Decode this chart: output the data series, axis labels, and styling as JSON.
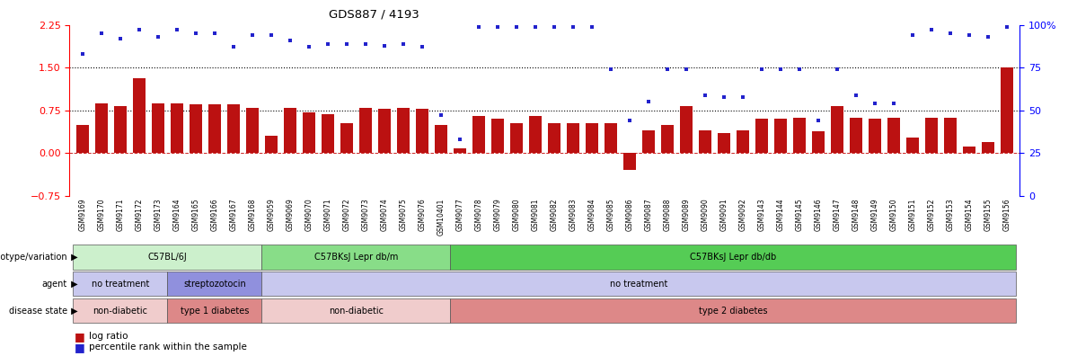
{
  "title": "GDS887 / 4193",
  "samples": [
    "GSM9169",
    "GSM9170",
    "GSM9171",
    "GSM9172",
    "GSM9173",
    "GSM9164",
    "GSM9165",
    "GSM9166",
    "GSM9167",
    "GSM9168",
    "GSM9059",
    "GSM9069",
    "GSM9070",
    "GSM9071",
    "GSM9072",
    "GSM9073",
    "GSM9074",
    "GSM9075",
    "GSM9076",
    "GSM10401",
    "GSM9077",
    "GSM9078",
    "GSM9079",
    "GSM9080",
    "GSM9081",
    "GSM9082",
    "GSM9083",
    "GSM9084",
    "GSM9085",
    "GSM9086",
    "GSM9087",
    "GSM9088",
    "GSM9089",
    "GSM9090",
    "GSM9091",
    "GSM9092",
    "GSM9143",
    "GSM9144",
    "GSM9145",
    "GSM9146",
    "GSM9147",
    "GSM9148",
    "GSM9149",
    "GSM9150",
    "GSM9151",
    "GSM9152",
    "GSM9153",
    "GSM9154",
    "GSM9155",
    "GSM9156"
  ],
  "log_ratio": [
    0.5,
    0.88,
    0.83,
    1.32,
    0.88,
    0.88,
    0.85,
    0.85,
    0.85,
    0.8,
    0.3,
    0.8,
    0.72,
    0.68,
    0.52,
    0.8,
    0.78,
    0.8,
    0.78,
    0.5,
    0.08,
    0.65,
    0.6,
    0.52,
    0.65,
    0.52,
    0.52,
    0.52,
    0.52,
    -0.3,
    0.4,
    0.5,
    0.82,
    0.4,
    0.35,
    0.4,
    0.6,
    0.6,
    0.62,
    0.38,
    0.82,
    0.62,
    0.6,
    0.62,
    0.28,
    0.62,
    0.62,
    0.12,
    0.2,
    1.5
  ],
  "percentile": [
    83,
    95,
    92,
    97,
    93,
    97,
    95,
    95,
    87,
    94,
    94,
    91,
    87,
    89,
    89,
    89,
    88,
    89,
    87,
    47,
    33,
    99,
    99,
    99,
    99,
    99,
    99,
    99,
    74,
    44,
    55,
    74,
    74,
    59,
    58,
    58,
    74,
    74,
    74,
    44,
    74,
    59,
    54,
    54,
    94,
    97,
    95,
    94,
    93,
    99
  ],
  "bar_color": "#bb1111",
  "dot_color": "#2222cc",
  "ylim_left": [
    -0.75,
    2.25
  ],
  "ylim_right": [
    0,
    100
  ],
  "yticks_left": [
    -0.75,
    0.0,
    0.75,
    1.5,
    2.25
  ],
  "yticks_right": [
    0,
    25,
    50,
    75,
    100
  ],
  "hlines": [
    0.75,
    1.5
  ],
  "annotation_rows": [
    {
      "label": "genotype/variation",
      "segments": [
        {
          "text": "C57BL/6J",
          "start": 0,
          "end": 9,
          "color": "#ccf0cc"
        },
        {
          "text": "C57BKsJ Lepr db/m",
          "start": 10,
          "end": 19,
          "color": "#88dd88"
        },
        {
          "text": "C57BKsJ Lepr db/db",
          "start": 20,
          "end": 49,
          "color": "#55cc55"
        }
      ]
    },
    {
      "label": "agent",
      "segments": [
        {
          "text": "no treatment",
          "start": 0,
          "end": 4,
          "color": "#c8c8ee"
        },
        {
          "text": "streptozotocin",
          "start": 5,
          "end": 9,
          "color": "#9090dd"
        },
        {
          "text": "no treatment",
          "start": 10,
          "end": 49,
          "color": "#c8c8ee"
        }
      ]
    },
    {
      "label": "disease state",
      "segments": [
        {
          "text": "non-diabetic",
          "start": 0,
          "end": 4,
          "color": "#f0cccc"
        },
        {
          "text": "type 1 diabetes",
          "start": 5,
          "end": 9,
          "color": "#dd8888"
        },
        {
          "text": "non-diabetic",
          "start": 10,
          "end": 19,
          "color": "#f0cccc"
        },
        {
          "text": "type 2 diabetes",
          "start": 20,
          "end": 49,
          "color": "#dd8888"
        }
      ]
    }
  ]
}
